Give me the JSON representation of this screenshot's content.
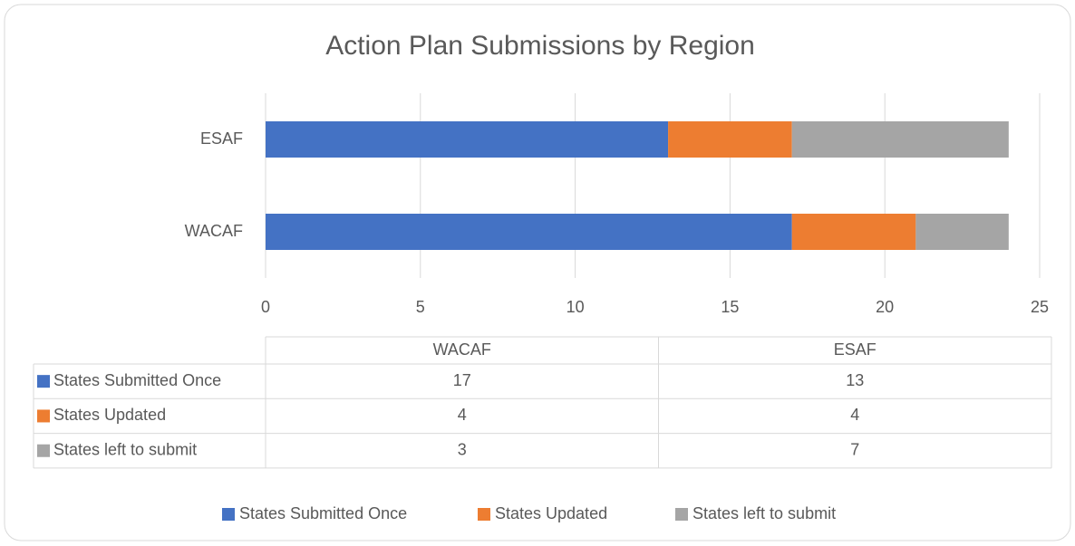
{
  "chart_data": {
    "type": "stacked_bar_horizontal",
    "title": "Action Plan Submissions by Region",
    "categories": [
      "WACAF",
      "ESAF"
    ],
    "series": [
      {
        "name": "States Submitted Once",
        "color": "#4472c4",
        "values": [
          17,
          13
        ]
      },
      {
        "name": "States Updated",
        "color": "#ed7d31",
        "values": [
          4,
          4
        ]
      },
      {
        "name": "States left to submit",
        "color": "#a5a5a5",
        "values": [
          3,
          7
        ]
      }
    ],
    "xlim": [
      0,
      25
    ],
    "xticks": [
      0,
      5,
      10,
      15,
      20,
      25
    ],
    "grid": true,
    "legend": "bottom"
  }
}
